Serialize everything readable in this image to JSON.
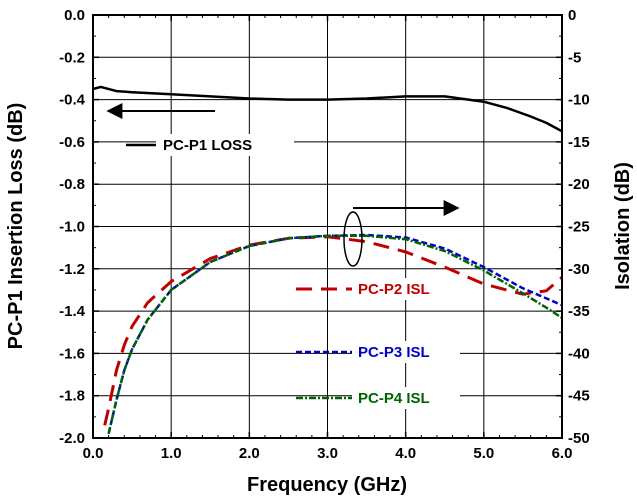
{
  "chart_data": {
    "type": "line",
    "title": "",
    "xlabel": "Frequency  (GHz)",
    "ylabel_left": "PC-P1 Insertion Loss  (dB)",
    "ylabel_right": "Isolation  (dB)",
    "xlim": [
      0,
      6
    ],
    "ylim_left": [
      -2.0,
      0.0
    ],
    "ylim_right": [
      -50,
      0
    ],
    "grid": true,
    "x_ticks": [
      "0.0",
      "1.0",
      "2.0",
      "3.0",
      "4.0",
      "5.0",
      "6.0"
    ],
    "y_left_ticks": [
      "0.0",
      "-0.2",
      "-0.4",
      "-0.6",
      "-0.8",
      "-1.0",
      "-1.2",
      "-1.4",
      "-1.6",
      "-1.8",
      "-2.0"
    ],
    "y_right_ticks": [
      "0",
      "-5",
      "-10",
      "-15",
      "-20",
      "-25",
      "-30",
      "-35",
      "-40",
      "-45",
      "-50"
    ],
    "series": [
      {
        "name": "PC-P1 LOSS",
        "axis": "left",
        "color": "#000000",
        "dash": "solid",
        "x": [
          0.0,
          0.1,
          0.3,
          0.5,
          1.0,
          1.5,
          2.0,
          2.5,
          3.0,
          3.5,
          4.0,
          4.5,
          5.0,
          5.3,
          5.6,
          5.8,
          6.0
        ],
        "y": [
          -0.35,
          -0.34,
          -0.36,
          -0.365,
          -0.375,
          -0.385,
          -0.395,
          -0.4,
          -0.4,
          -0.395,
          -0.385,
          -0.385,
          -0.41,
          -0.44,
          -0.48,
          -0.51,
          -0.55
        ]
      },
      {
        "name": "PC-P2 ISL",
        "axis": "right",
        "color": "#c00000",
        "dash": "long",
        "x": [
          0.15,
          0.2,
          0.3,
          0.4,
          0.5,
          0.7,
          1.0,
          1.5,
          2.0,
          2.5,
          3.0,
          3.5,
          4.0,
          4.5,
          5.0,
          5.5,
          5.8,
          6.0
        ],
        "y": [
          -48.5,
          -46.5,
          -42.0,
          -39.0,
          -36.8,
          -34.0,
          -31.5,
          -28.8,
          -27.2,
          -26.4,
          -26.2,
          -26.8,
          -28.0,
          -29.8,
          -31.8,
          -33.0,
          -32.6,
          -31.0
        ]
      },
      {
        "name": "PC-P3 ISL",
        "axis": "right",
        "color": "#0000cc",
        "dash": "short",
        "x": [
          0.2,
          0.3,
          0.4,
          0.5,
          0.7,
          1.0,
          1.5,
          2.0,
          2.5,
          3.0,
          3.5,
          4.0,
          4.5,
          5.0,
          5.5,
          5.8,
          6.0
        ],
        "y": [
          -49.5,
          -45.5,
          -42.0,
          -39.5,
          -36.0,
          -32.5,
          -29.2,
          -27.3,
          -26.4,
          -26.1,
          -26.0,
          -26.3,
          -27.6,
          -29.8,
          -32.3,
          -33.5,
          -34.3
        ]
      },
      {
        "name": "PC-P4 ISL",
        "axis": "right",
        "color": "#006400",
        "dash": "dashdot",
        "x": [
          0.2,
          0.3,
          0.4,
          0.5,
          0.7,
          1.0,
          1.5,
          2.0,
          2.5,
          3.0,
          3.5,
          4.0,
          4.5,
          5.0,
          5.5,
          5.8,
          6.0
        ],
        "y": [
          -49.5,
          -45.5,
          -42.0,
          -39.5,
          -36.0,
          -32.5,
          -29.2,
          -27.3,
          -26.4,
          -26.1,
          -26.1,
          -26.5,
          -27.9,
          -30.2,
          -32.9,
          -34.6,
          -35.8
        ]
      }
    ],
    "annotations": {
      "arrow_left": "points from loss curve to left axis",
      "arrow_right": "points from isolation curves to right axis"
    }
  }
}
